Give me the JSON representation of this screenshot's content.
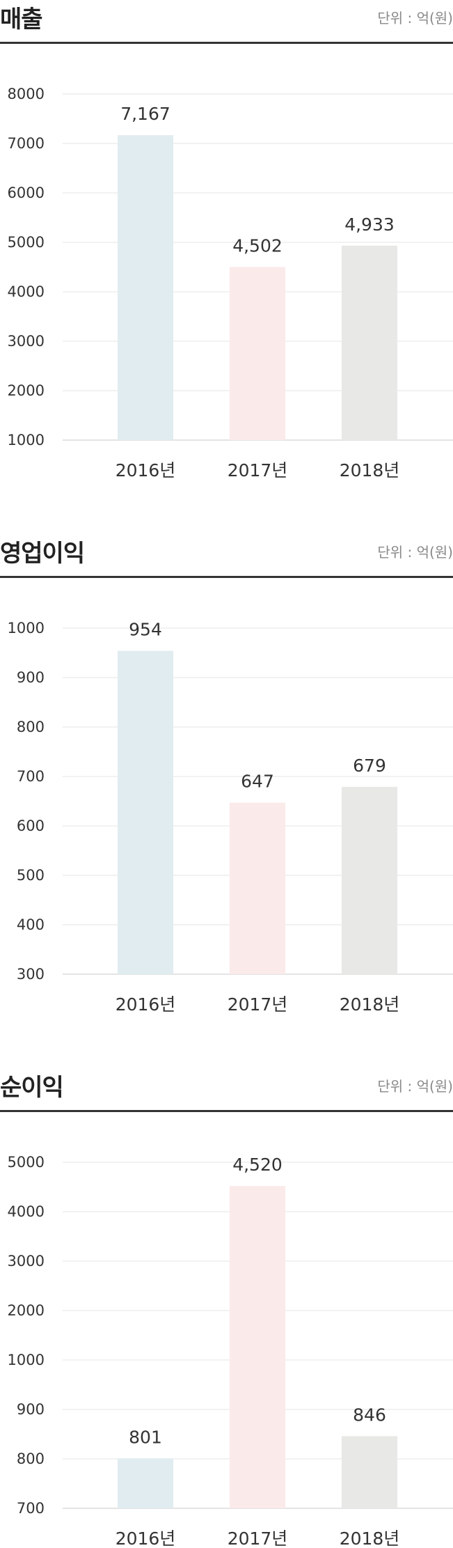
{
  "chart_data": [
    {
      "type": "bar",
      "title": "매출",
      "unit": "단위 : 억(원)",
      "categories": [
        "2016년",
        "2017년",
        "2018년"
      ],
      "values": [
        7167,
        4502,
        4933
      ],
      "value_labels": [
        "7,167",
        "4,502",
        "4,933"
      ],
      "yticks": [
        1000,
        2000,
        3000,
        4000,
        5000,
        6000,
        7000,
        8000
      ],
      "ytick_labels": [
        "1000",
        "2000",
        "3000",
        "4000",
        "5000",
        "6000",
        "7000",
        "8000"
      ],
      "bar_colors": [
        "#e1ecf0",
        "#fbeaea",
        "#e8e8e6"
      ],
      "grid": true
    },
    {
      "type": "bar",
      "title": "영업이익",
      "unit": "단위 : 억(원)",
      "categories": [
        "2016년",
        "2017년",
        "2018년"
      ],
      "values": [
        954,
        647,
        679
      ],
      "value_labels": [
        "954",
        "647",
        "679"
      ],
      "yticks": [
        300,
        400,
        500,
        600,
        700,
        800,
        900,
        1000
      ],
      "ytick_labels": [
        "300",
        "400",
        "500",
        "600",
        "700",
        "800",
        "900",
        "1000"
      ],
      "bar_colors": [
        "#e1ecf0",
        "#fbeaea",
        "#e8e8e6"
      ],
      "grid": true
    },
    {
      "type": "bar",
      "title": "순이익",
      "unit": "단위 : 억(원)",
      "categories": [
        "2016년",
        "2017년",
        "2018년"
      ],
      "values": [
        801,
        4520,
        846
      ],
      "value_labels": [
        "801",
        "4,520",
        "846"
      ],
      "yticks": [
        700,
        800,
        900,
        1000,
        2000,
        3000,
        4000,
        5000
      ],
      "ytick_labels": [
        "700",
        "800",
        "900",
        "1000",
        "2000",
        "3000",
        "4000",
        "5000"
      ],
      "bar_colors": [
        "#e1ecf0",
        "#fbeaea",
        "#e8e8e6"
      ],
      "grid": true,
      "y_scale": "piecewise"
    }
  ]
}
